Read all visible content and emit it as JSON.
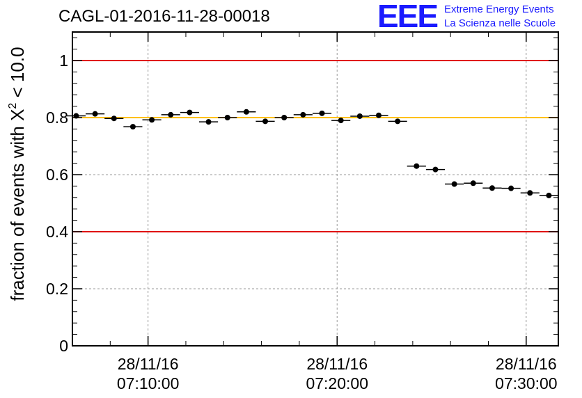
{
  "header": {
    "run_title": "CAGL-01-2016-11-28-00018",
    "logo_letters": "EEE",
    "logo_line1": "Extreme Energy Events",
    "logo_line2": "La Scienza nelle Scuole"
  },
  "colors": {
    "limit_line": "#e00000",
    "reference_line": "#ffc000",
    "marker": "#000000",
    "grid": "#999999",
    "logo": "#1a1aff"
  },
  "chart_data": {
    "type": "scatter",
    "ylabel_prefix": "fraction of events with ",
    "ylabel_symbol": "X",
    "ylabel_exponent": "2",
    "ylabel_suffix": " < 10.0",
    "ylim": [
      0,
      1.1
    ],
    "yticks": [
      0,
      0.2,
      0.4,
      0.6,
      0.8,
      1
    ],
    "ytick_labels": [
      "0",
      "0.2",
      "0.4",
      "0.6",
      "0.8",
      "1"
    ],
    "xlim_minutes": [
      -4.0,
      21.7
    ],
    "xticks": [
      {
        "minute": 0,
        "date": "28/11/16",
        "time": "07:10:00"
      },
      {
        "minute": 10,
        "date": "28/11/16",
        "time": "07:20:00"
      },
      {
        "minute": 20,
        "date": "28/11/16",
        "time": "07:30:00"
      }
    ],
    "bin_width_minutes": 1.0,
    "grid": true,
    "hlines": [
      {
        "y": 1.0,
        "color": "#e00000"
      },
      {
        "y": 0.8,
        "color": "#ffc000"
      },
      {
        "y": 0.4,
        "color": "#e00000"
      }
    ],
    "points": [
      {
        "x": -3.8,
        "y": 0.806
      },
      {
        "x": -2.8,
        "y": 0.813
      },
      {
        "x": -1.8,
        "y": 0.797
      },
      {
        "x": -0.8,
        "y": 0.768
      },
      {
        "x": 0.2,
        "y": 0.792
      },
      {
        "x": 1.2,
        "y": 0.81
      },
      {
        "x": 2.2,
        "y": 0.818
      },
      {
        "x": 3.2,
        "y": 0.785
      },
      {
        "x": 4.2,
        "y": 0.8
      },
      {
        "x": 5.2,
        "y": 0.82
      },
      {
        "x": 6.2,
        "y": 0.787
      },
      {
        "x": 7.2,
        "y": 0.8
      },
      {
        "x": 8.2,
        "y": 0.81
      },
      {
        "x": 9.2,
        "y": 0.815
      },
      {
        "x": 10.2,
        "y": 0.79
      },
      {
        "x": 11.2,
        "y": 0.805
      },
      {
        "x": 12.2,
        "y": 0.808
      },
      {
        "x": 13.2,
        "y": 0.787
      },
      {
        "x": 14.2,
        "y": 0.63
      },
      {
        "x": 15.2,
        "y": 0.618
      },
      {
        "x": 16.2,
        "y": 0.567
      },
      {
        "x": 17.2,
        "y": 0.57
      },
      {
        "x": 18.2,
        "y": 0.553
      },
      {
        "x": 19.2,
        "y": 0.552
      },
      {
        "x": 20.2,
        "y": 0.536
      },
      {
        "x": 21.2,
        "y": 0.527
      }
    ]
  }
}
